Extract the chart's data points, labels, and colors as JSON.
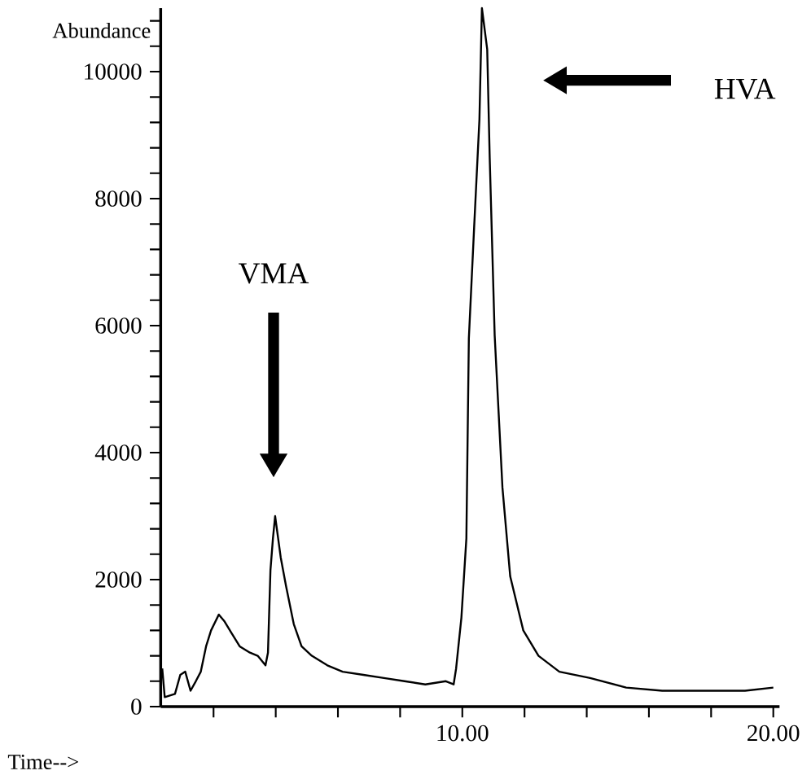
{
  "chart_data": {
    "type": "line",
    "xlabel": "Time-->",
    "ylabel": "Abundance",
    "xlim": [
      0.3,
      20.2
    ],
    "ylim": [
      0,
      11000
    ],
    "xticks": [
      {
        "value": 2,
        "label": null
      },
      {
        "value": 4,
        "label": null
      },
      {
        "value": 6,
        "label": null
      },
      {
        "value": 8,
        "label": null
      },
      {
        "value": 10,
        "label": "10.00"
      },
      {
        "value": 12,
        "label": null
      },
      {
        "value": 14,
        "label": null
      },
      {
        "value": 16,
        "label": null
      },
      {
        "value": 18,
        "label": null
      },
      {
        "value": 20,
        "label": "20.00"
      }
    ],
    "yticks": [
      0,
      {
        "value": 400,
        "label": null
      },
      {
        "value": 800,
        "label": null
      },
      {
        "value": 1200,
        "label": null
      },
      {
        "value": 1600,
        "label": null
      },
      2000,
      {
        "value": 2400,
        "label": null
      },
      {
        "value": 2800,
        "label": null
      },
      {
        "value": 3200,
        "label": null
      },
      {
        "value": 3600,
        "label": null
      },
      4000,
      {
        "value": 4400,
        "label": null
      },
      {
        "value": 4800,
        "label": null
      },
      {
        "value": 5200,
        "label": null
      },
      {
        "value": 5600,
        "label": null
      },
      6000,
      {
        "value": 6400,
        "label": null
      },
      {
        "value": 6800,
        "label": null
      },
      {
        "value": 7200,
        "label": null
      },
      {
        "value": 7600,
        "label": null
      },
      8000,
      {
        "value": 8400,
        "label": null
      },
      {
        "value": 8800,
        "label": null
      },
      {
        "value": 9200,
        "label": null
      },
      {
        "value": 9600,
        "label": null
      },
      10000,
      {
        "value": 10400,
        "label": null
      },
      {
        "value": 10800,
        "label": null
      }
    ],
    "series": [
      {
        "color": "#000000",
        "x": [
          0.35,
          0.43,
          0.76,
          0.93,
          1.09,
          1.26,
          1.43,
          1.59,
          1.76,
          1.92,
          2.17,
          2.34,
          2.59,
          2.84,
          3.17,
          3.42,
          3.67,
          3.75,
          3.83,
          3.91,
          3.98,
          4.16,
          4.33,
          4.58,
          4.83,
          5.16,
          5.66,
          6.15,
          6.82,
          7.48,
          8.14,
          8.81,
          9.47,
          9.72,
          9.8,
          9.97,
          10.13,
          10.21,
          10.38,
          10.55,
          10.63,
          10.8,
          10.88,
          11.04,
          11.29,
          11.54,
          11.96,
          12.45,
          13.12,
          14.11,
          15.27,
          16.43,
          17.76,
          19.09,
          20.0
        ],
        "values": [
          600,
          150,
          200,
          500,
          550,
          250,
          400,
          550,
          950,
          1200,
          1450,
          1350,
          1150,
          950,
          850,
          800,
          650,
          850,
          2150,
          2650,
          3000,
          2350,
          1900,
          1300,
          950,
          800,
          650,
          550,
          500,
          450,
          400,
          350,
          400,
          350,
          600,
          1400,
          2650,
          5800,
          7550,
          9250,
          11000,
          10350,
          8650,
          5850,
          3450,
          2050,
          1200,
          800,
          550,
          450,
          300,
          250,
          250,
          250,
          300
        ]
      }
    ],
    "annotations": [
      "VMA",
      "HVA"
    ]
  }
}
